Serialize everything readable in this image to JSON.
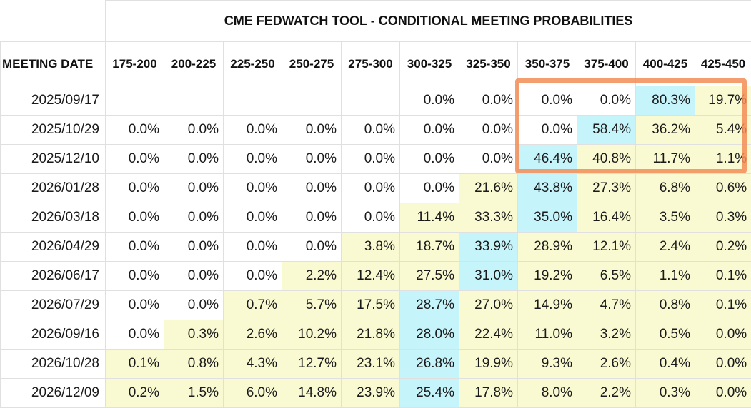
{
  "title": "CME FEDWATCH TOOL - CONDITIONAL MEETING PROBABILITIES",
  "header": {
    "date_label": "MEETING DATE",
    "ranges": [
      "175-200",
      "200-225",
      "225-250",
      "250-275",
      "275-300",
      "300-325",
      "325-350",
      "350-375",
      "375-400",
      "400-425",
      "425-450"
    ]
  },
  "rows": [
    {
      "date": "2025/09/17",
      "values": [
        "",
        "",
        "",
        "",
        "",
        "0.0%",
        "0.0%",
        "0.0%",
        "0.0%",
        "80.3%",
        "19.7%"
      ]
    },
    {
      "date": "2025/10/29",
      "values": [
        "0.0%",
        "0.0%",
        "0.0%",
        "0.0%",
        "0.0%",
        "0.0%",
        "0.0%",
        "0.0%",
        "58.4%",
        "36.2%",
        "5.4%"
      ]
    },
    {
      "date": "2025/12/10",
      "values": [
        "0.0%",
        "0.0%",
        "0.0%",
        "0.0%",
        "0.0%",
        "0.0%",
        "0.0%",
        "46.4%",
        "40.8%",
        "11.7%",
        "1.1%"
      ]
    },
    {
      "date": "2026/01/28",
      "values": [
        "0.0%",
        "0.0%",
        "0.0%",
        "0.0%",
        "0.0%",
        "0.0%",
        "21.6%",
        "43.8%",
        "27.3%",
        "6.8%",
        "0.6%"
      ]
    },
    {
      "date": "2026/03/18",
      "values": [
        "0.0%",
        "0.0%",
        "0.0%",
        "0.0%",
        "0.0%",
        "11.4%",
        "33.3%",
        "35.0%",
        "16.4%",
        "3.5%",
        "0.3%"
      ]
    },
    {
      "date": "2026/04/29",
      "values": [
        "0.0%",
        "0.0%",
        "0.0%",
        "0.0%",
        "3.8%",
        "18.7%",
        "33.9%",
        "28.9%",
        "12.1%",
        "2.4%",
        "0.2%"
      ]
    },
    {
      "date": "2026/06/17",
      "values": [
        "0.0%",
        "0.0%",
        "0.0%",
        "2.2%",
        "12.4%",
        "27.5%",
        "31.0%",
        "19.2%",
        "6.5%",
        "1.1%",
        "0.1%"
      ]
    },
    {
      "date": "2026/07/29",
      "values": [
        "0.0%",
        "0.0%",
        "0.7%",
        "5.7%",
        "17.5%",
        "28.7%",
        "27.0%",
        "14.9%",
        "4.7%",
        "0.8%",
        "0.1%"
      ]
    },
    {
      "date": "2026/09/16",
      "values": [
        "0.0%",
        "0.3%",
        "2.6%",
        "10.2%",
        "21.8%",
        "28.0%",
        "22.4%",
        "11.0%",
        "3.2%",
        "0.5%",
        "0.0%"
      ]
    },
    {
      "date": "2026/10/28",
      "values": [
        "0.1%",
        "0.8%",
        "4.3%",
        "12.7%",
        "23.1%",
        "26.8%",
        "19.9%",
        "9.3%",
        "2.6%",
        "0.4%",
        "0.0%"
      ]
    },
    {
      "date": "2026/12/09",
      "values": [
        "0.2%",
        "1.5%",
        "6.0%",
        "14.8%",
        "23.9%",
        "25.4%",
        "17.8%",
        "8.0%",
        "2.2%",
        "0.3%",
        "0.0%"
      ]
    }
  ],
  "cell_shading": [
    "eeeeezzzzcy",
    "zzzzzzzzcyy",
    "zzzzzzzcyyy",
    "zzzzzzycyyy",
    "zzzzzyycyyy",
    "zzzzyycyyyy",
    "zzzyyycyyyy",
    "zzyyycyyyyy",
    "zyyyycyyyyy",
    "yyyyycyyyyy",
    "yyyyycyyyyy"
  ],
  "colors": {
    "max_probability": "#c6f4fb",
    "nonzero": "#fafad2",
    "zero": "#ffffff",
    "annotation": "#f28c56"
  }
}
